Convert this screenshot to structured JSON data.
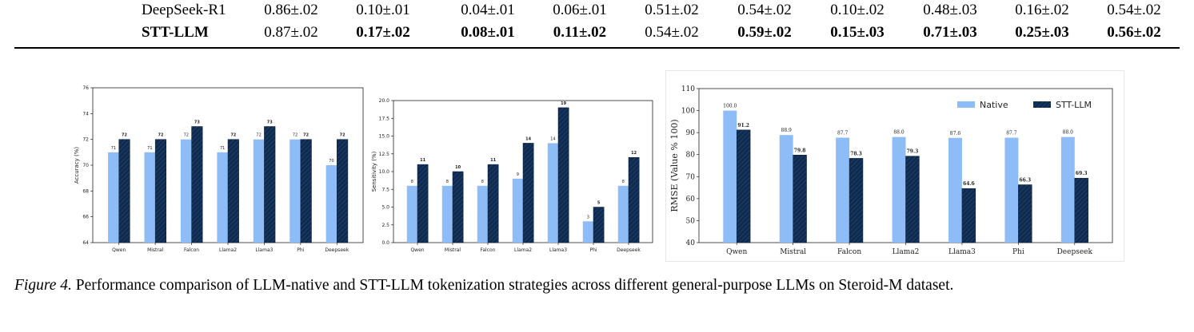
{
  "table": {
    "rows": [
      {
        "name": "DeepSeek-R1",
        "bold_name": false,
        "cells": [
          "0.86±.02",
          "0.10±.01",
          "0.04±.01",
          "0.06±.01",
          "0.51±.02",
          "0.54±.02",
          "0.10±.02",
          "0.48±.03",
          "0.16±.02",
          "0.54±.02"
        ],
        "bold": [
          false,
          false,
          false,
          false,
          false,
          false,
          false,
          false,
          false,
          false
        ]
      },
      {
        "name": "STT-LLM",
        "bold_name": true,
        "cells": [
          "0.87±.02",
          "0.17±.02",
          "0.08±.01",
          "0.11±.02",
          "0.54±.02",
          "0.59±.02",
          "0.15±.03",
          "0.71±.03",
          "0.25±.03",
          "0.56±.02"
        ],
        "bold": [
          false,
          true,
          true,
          true,
          false,
          true,
          true,
          true,
          true,
          true
        ]
      }
    ]
  },
  "chart_data": [
    {
      "type": "bar",
      "categories": [
        "Qwen",
        "Mistral",
        "Falcon",
        "Llama2",
        "Llama3",
        "Phi",
        "Deepseek"
      ],
      "series": [
        {
          "values": [
            71,
            71,
            72,
            71,
            72,
            72,
            70
          ]
        },
        {
          "values": [
            72,
            72,
            73,
            72,
            73,
            72,
            72
          ]
        }
      ],
      "ylabel": "Accuracy (%)",
      "ylim": [
        64,
        76
      ],
      "yticks": [
        64,
        66,
        68,
        70,
        72,
        74,
        76
      ],
      "grid": false,
      "colors": [
        "#8ebcf6",
        "#0e2a4e"
      ]
    },
    {
      "type": "bar",
      "categories": [
        "Qwen",
        "Mistral",
        "Falcon",
        "Llama2",
        "Llama3",
        "Phi",
        "Deepseek"
      ],
      "series": [
        {
          "values": [
            8,
            8,
            8,
            9,
            14,
            3,
            8
          ]
        },
        {
          "values": [
            11,
            10,
            11,
            14,
            19,
            5,
            12
          ]
        }
      ],
      "ylabel": "Sensitivity (%)",
      "ylim": [
        0,
        20
      ],
      "yticks": [
        0.0,
        2.5,
        5.0,
        7.5,
        10.0,
        12.5,
        15.0,
        17.5,
        20.0
      ],
      "ytick_labels": [
        "0.0",
        "2.5",
        "5.0",
        "7.5",
        "10.0",
        "12.5",
        "15.0",
        "17.5",
        "20.0"
      ],
      "grid": false,
      "colors": [
        "#8ebcf6",
        "#0e2a4e"
      ]
    },
    {
      "type": "bar",
      "categories": [
        "Qwen",
        "Mistral",
        "Falcon",
        "Llama2",
        "Llama3",
        "Phi",
        "Deepseek"
      ],
      "series": [
        {
          "name": "Native",
          "values": [
            100.0,
            88.9,
            87.7,
            88.0,
            87.6,
            87.7,
            88.0
          ]
        },
        {
          "name": "STT-LLM",
          "values": [
            91.2,
            79.8,
            78.3,
            79.3,
            64.6,
            66.3,
            69.3
          ]
        }
      ],
      "ylabel": "RMSE (Value % 100)",
      "ylim": [
        40,
        110
      ],
      "yticks": [
        40,
        50,
        60,
        70,
        80,
        90,
        100,
        110
      ],
      "grid": false,
      "legend": "top-right",
      "colors": [
        "#8ebcf6",
        "#0e2a4e"
      ]
    }
  ],
  "caption": {
    "label": "Figure 4.",
    "text": "Performance comparison of LLM-native and STT-LLM tokenization strategies across different general-purpose LLMs on Steroid-M dataset."
  }
}
